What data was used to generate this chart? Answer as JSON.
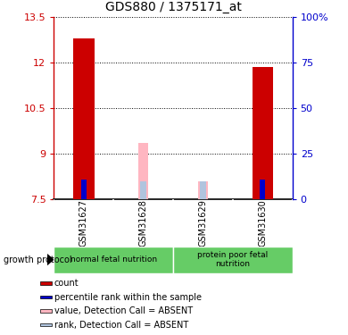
{
  "title": "GDS880 / 1375171_at",
  "samples": [
    "GSM31627",
    "GSM31628",
    "GSM31629",
    "GSM31630"
  ],
  "group1_label": "normal fetal nutrition",
  "group2_label": "protein poor fetal\nnutrition",
  "group_protocol": "growth protocol",
  "ylim_left": [
    7.5,
    13.5
  ],
  "ylim_right": [
    0,
    100
  ],
  "yticks_left": [
    7.5,
    9.0,
    10.5,
    12.0,
    13.5
  ],
  "ytick_labels_left": [
    "7.5",
    "9",
    "10.5",
    "12",
    "13.5"
  ],
  "yticks_right": [
    0,
    25,
    50,
    75,
    100
  ],
  "ytick_labels_right": [
    "0",
    "25",
    "50",
    "75",
    "100%"
  ],
  "bar_bottom": 7.5,
  "red_values": [
    12.8,
    7.5,
    7.5,
    11.85
  ],
  "blue_values": [
    8.15,
    7.5,
    7.5,
    8.15
  ],
  "pink_values": [
    7.5,
    9.35,
    8.1,
    7.5
  ],
  "lightblue_values": [
    7.5,
    8.1,
    8.1,
    7.5
  ],
  "red_color": "#cc0000",
  "blue_color": "#0000cc",
  "pink_color": "#ffb6c1",
  "lightblue_color": "#b0c4de",
  "bar_width": 0.35,
  "left_axis_color": "#cc0000",
  "right_axis_color": "#0000cc",
  "legend_items": [
    {
      "label": "count",
      "color": "#cc0000"
    },
    {
      "label": "percentile rank within the sample",
      "color": "#0000cc"
    },
    {
      "label": "value, Detection Call = ABSENT",
      "color": "#ffb6c1"
    },
    {
      "label": "rank, Detection Call = ABSENT",
      "color": "#b0c4de"
    }
  ],
  "fig_width": 3.9,
  "fig_height": 3.75,
  "dpi": 100
}
